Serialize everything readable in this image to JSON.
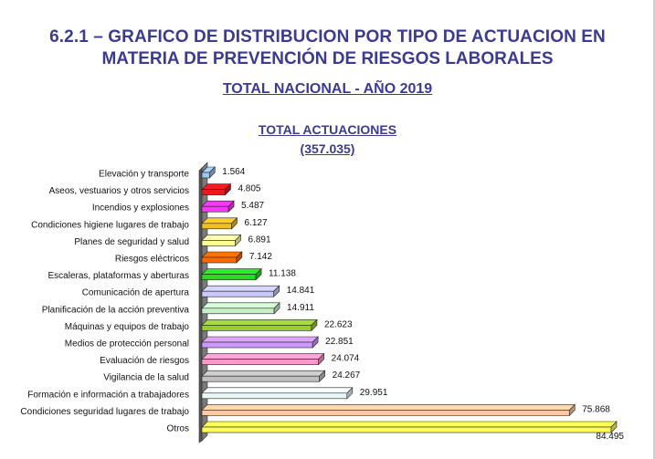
{
  "header": {
    "title_line1": "6.2.1 – GRAFICO DE DISTRIBUCION POR TIPO DE ACTUACION EN",
    "title_line2": "MATERIA DE PREVENCIÓN DE RIESGOS LABORALES",
    "subtitle": "TOTAL NACIONAL  -  AÑO 2019"
  },
  "chart_data": {
    "type": "bar",
    "orientation": "horizontal",
    "style": "3d",
    "title": "TOTAL ACTUACIONES",
    "total_label": "(357.035)",
    "xlim": [
      0,
      84495
    ],
    "grid": false,
    "categories": [
      "Elevación y transporte",
      "Aseos, vestuarios y otros servicios",
      "Incendios y explosiones",
      "Condiciones higiene lugares de trabajo",
      "Planes de seguridad y salud",
      "Riesgos eléctricos",
      "Escaleras, plataformas y aberturas",
      "Comunicación de apertura",
      "Planificación de la acción preventiva",
      "Máquinas y equipos de trabajo",
      "Medios de protección personal",
      "Evaluación de riesgos",
      "Vigilancia de la salud",
      "Formación e información a trabajadores",
      "Condiciones seguridad lugares de trabajo",
      "Otros"
    ],
    "values": [
      1564,
      4805,
      5487,
      6127,
      6891,
      7142,
      11138,
      14841,
      14911,
      22623,
      22851,
      24074,
      24267,
      29951,
      75868,
      84495
    ],
    "value_labels": [
      "1.564",
      "4.805",
      "5.487",
      "6.127",
      "6.891",
      "7.142",
      "11.138",
      "14.841",
      "14.911",
      "22.623",
      "22.851",
      "24.074",
      "24.267",
      "29.951",
      "75.868",
      "84.495"
    ],
    "colors": [
      "#9ec5f0",
      "#e41a1c",
      "#ff33ff",
      "#f0c020",
      "#ffffa0",
      "#ff6a00",
      "#22dd22",
      "#c8c8ff",
      "#c8f0c8",
      "#99cc33",
      "#cc99ff",
      "#ff99cc",
      "#c0c0c0",
      "#e8f8f8",
      "#ffc8a0",
      "#ffff55"
    ]
  }
}
